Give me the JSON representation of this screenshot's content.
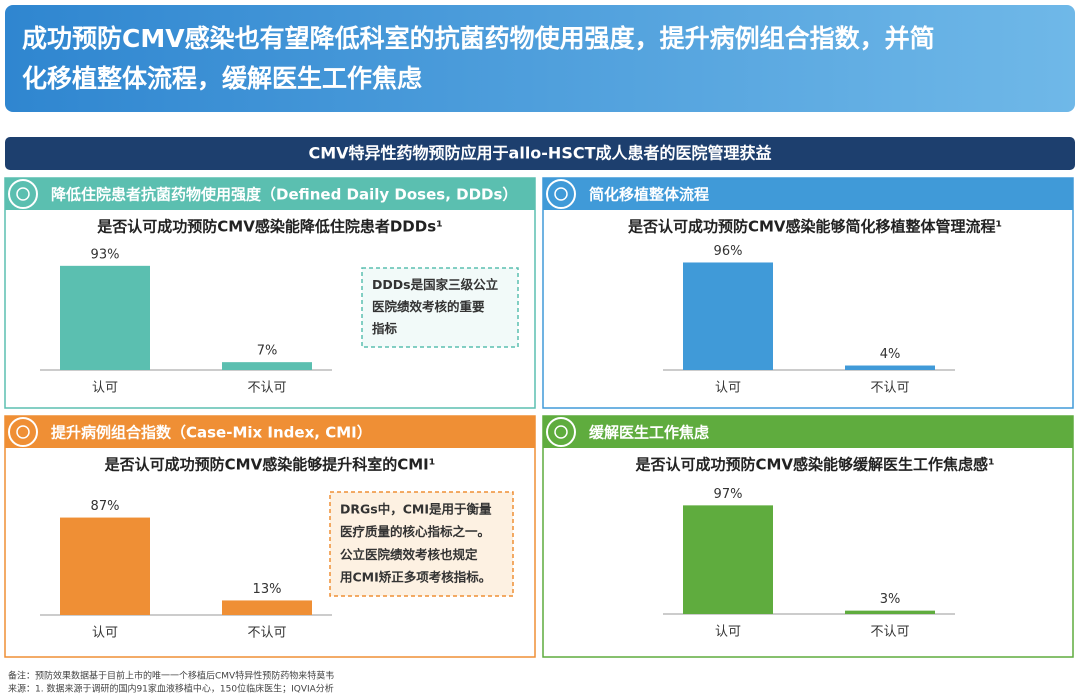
{
  "title": [
    "成功预防CMV感染也有望降低科室的抗菌药物使用强度，提升病例组合指数，并简",
    "化移植整体流程，缓解医生工作焦虑"
  ],
  "banner": "CMV特异性药物预防应用于allo-HSCT成人患者的医院管理获益",
  "chart_data": [
    {
      "type": "bar",
      "title": "降低住院患者抗菌药物使用强度（Defined Daily Doses, DDDs）",
      "subtitle": "是否认可成功预防CMV感染能降低住院患者DDDs¹",
      "categories": [
        "认可",
        "不认可"
      ],
      "values": [
        93,
        7
      ],
      "value_labels": [
        "93%",
        "7%"
      ],
      "color": "#5bbfb0",
      "callout": [
        "DDDs是国家三级公立",
        "医院绩效考核的重要",
        "指标"
      ]
    },
    {
      "type": "bar",
      "title": "简化移植整体流程",
      "subtitle": "是否认可成功预防CMV感染能够简化移植整体管理流程¹",
      "categories": [
        "认可",
        "不认可"
      ],
      "values": [
        96,
        4
      ],
      "value_labels": [
        "96%",
        "4%"
      ],
      "color": "#409ad8"
    },
    {
      "type": "bar",
      "title": "提升病例组合指数（Case-Mix Index, CMI）",
      "subtitle": "是否认可成功预防CMV感染能够提升科室的CMI¹",
      "categories": [
        "认可",
        "不认可"
      ],
      "values": [
        87,
        13
      ],
      "value_labels": [
        "87%",
        "13%"
      ],
      "color": "#ef8f35",
      "callout": [
        "DRGs中，CMI是用于衡量",
        "医疗质量的核心指标之一。",
        "公立医院绩效考核也规定",
        "用CMI矫正多项考核指标。"
      ]
    },
    {
      "type": "bar",
      "title": "缓解医生工作焦虑",
      "subtitle": "是否认可成功预防CMV感染能够缓解医生工作焦虑感¹",
      "categories": [
        "认可",
        "不认可"
      ],
      "values": [
        97,
        3
      ],
      "value_labels": [
        "97%",
        "3%"
      ],
      "color": "#5fac3e"
    }
  ],
  "notes": [
    "备注：预防效果数据基于目前上市的唯一一个移植后CMV特异性预防药物来特莫韦",
    "来源：1. 数据来源于调研的国内91家血液移植中心，150位临床医生；IQVIA分析"
  ]
}
